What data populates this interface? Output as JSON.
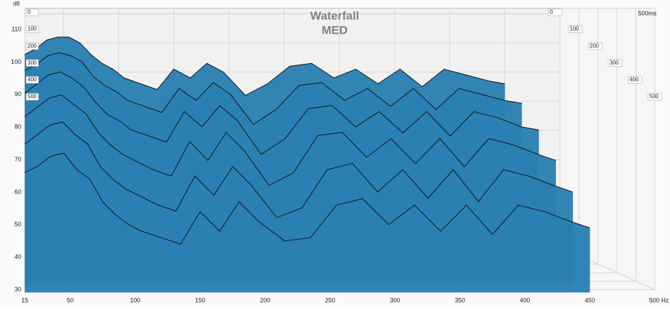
{
  "chart_data": {
    "type": "waterfall",
    "title": "Waterfall",
    "subtitle": "MED",
    "y_label": "dB",
    "x": [
      15,
      25,
      35,
      45,
      55,
      65,
      75,
      85,
      95,
      105,
      120,
      135,
      150,
      165,
      180,
      195,
      215,
      235,
      255,
      275,
      295,
      315,
      335,
      355,
      375,
      395,
      415,
      435,
      450
    ],
    "series": [
      {
        "name": "0",
        "color": "#2b80b3",
        "values": [
          96,
          98,
          101,
          102,
          102,
          100,
          96,
          93,
          91,
          88,
          86,
          84,
          91,
          88,
          93,
          90,
          82,
          86,
          92,
          93,
          88,
          91,
          86,
          91,
          85,
          91,
          89,
          87,
          86
        ]
      },
      {
        "name": "100",
        "color": "#2b80b3",
        "values": [
          92,
          94,
          97,
          98,
          97,
          95,
          90,
          87,
          85,
          82,
          80,
          78,
          86,
          82,
          88,
          84,
          74,
          79,
          87,
          88,
          82,
          86,
          80,
          86,
          79,
          86,
          84,
          82,
          81
        ]
      },
      {
        "name": "200",
        "color": "#2b80b3",
        "values": [
          86,
          89,
          92,
          93,
          91,
          88,
          83,
          79,
          77,
          74,
          72,
          70,
          80,
          75,
          82,
          77,
          66,
          71,
          81,
          82,
          75,
          80,
          73,
          80,
          72,
          80,
          78,
          75,
          74
        ]
      },
      {
        "name": "300",
        "color": "#2b80b3",
        "values": [
          80,
          83,
          86,
          87,
          84,
          81,
          75,
          71,
          68,
          66,
          63,
          61,
          72,
          66,
          75,
          69,
          58,
          62,
          74,
          75,
          67,
          73,
          65,
          73,
          64,
          73,
          71,
          68,
          66
        ]
      },
      {
        "name": "400",
        "color": "#2b80b3",
        "values": [
          73,
          76,
          79,
          80,
          76,
          73,
          66,
          62,
          59,
          57,
          54,
          52,
          63,
          57,
          66,
          60,
          50,
          53,
          65,
          67,
          58,
          65,
          56,
          65,
          55,
          65,
          63,
          60,
          58
        ]
      },
      {
        "name": "500",
        "color": "#2b80b3",
        "values": [
          66,
          68,
          71,
          72,
          67,
          64,
          57,
          53,
          50,
          48,
          46,
          44,
          54,
          48,
          57,
          51,
          45,
          46,
          56,
          58,
          50,
          56,
          48,
          56,
          47,
          56,
          54,
          51,
          49
        ]
      }
    ],
    "xlim": [
      15,
      500
    ],
    "xticks": [
      15,
      50,
      100,
      150,
      200,
      250,
      300,
      350,
      400,
      450,
      {
        "value": 500,
        "label": "500 Hz"
      }
    ],
    "ylim": [
      30,
      110
    ],
    "yticks": [
      30,
      40,
      50,
      60,
      70,
      80,
      90,
      100,
      110
    ],
    "tlim": [
      0,
      500
    ],
    "tticks": [
      0,
      100,
      200,
      300,
      400,
      500
    ],
    "t_end_label": "500ms",
    "grid": true
  }
}
